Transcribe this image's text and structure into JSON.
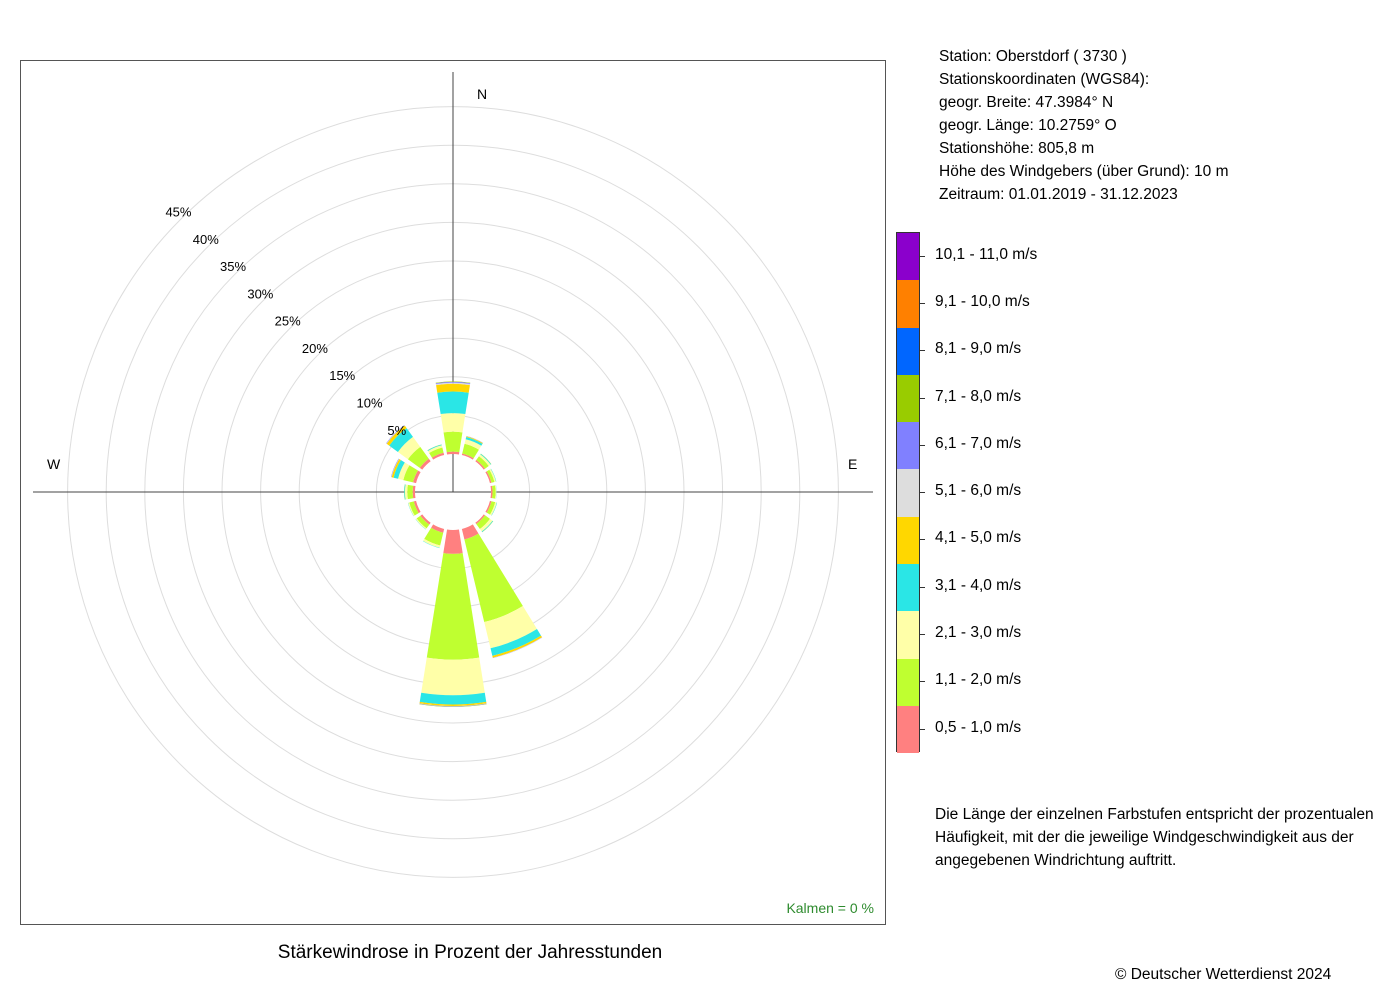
{
  "chart_data": {
    "type": "windrose",
    "title": "Stärkewindrose in Prozent der Jahresstunden",
    "directions": [
      "N",
      "NNE",
      "NE",
      "ENE",
      "E",
      "ESE",
      "SE",
      "SSE",
      "S",
      "SSW",
      "SW",
      "WSW",
      "W",
      "WNW",
      "NW",
      "NNW"
    ],
    "direction_labels": {
      "N": "N",
      "E": "E",
      "W": "W"
    },
    "radial_ticks": [
      {
        "value": 5,
        "label": "5%"
      },
      {
        "value": 10,
        "label": "10%"
      },
      {
        "value": 15,
        "label": "15%"
      },
      {
        "value": 20,
        "label": "20%"
      },
      {
        "value": 25,
        "label": "25%"
      },
      {
        "value": 30,
        "label": "30%"
      },
      {
        "value": 35,
        "label": "35%"
      },
      {
        "value": 40,
        "label": "40%"
      },
      {
        "value": 45,
        "label": "45%"
      }
    ],
    "speed_classes": [
      {
        "label": "0,5 - 1,0 m/s",
        "color": "#ff8080"
      },
      {
        "label": "1,1 - 2,0 m/s",
        "color": "#bfff30"
      },
      {
        "label": "2,1 - 3,0 m/s",
        "color": "#ffffa8"
      },
      {
        "label": "3,1 - 4,0 m/s",
        "color": "#2ae6e6"
      },
      {
        "label": "4,1 - 5,0 m/s",
        "color": "#ffd700"
      },
      {
        "label": "5,1 - 6,0 m/s",
        "color": "#dddddd"
      },
      {
        "label": "6,1 - 7,0 m/s",
        "color": "#8080ff"
      },
      {
        "label": "7,1 - 8,0 m/s",
        "color": "#99cc00"
      },
      {
        "label": "8,1 - 9,0 m/s",
        "color": "#0066ff"
      },
      {
        "label": "9,1 - 10,0 m/s",
        "color": "#ff8000"
      },
      {
        "label": "10,1 - 11,0 m/s",
        "color": "#8b00cc"
      }
    ],
    "series": [
      {
        "direction": "N",
        "values": [
          0.3,
          2.6,
          2.4,
          2.8,
          1.0,
          0.15,
          0.1,
          0.05,
          0,
          0,
          0
        ]
      },
      {
        "direction": "NNE",
        "values": [
          0.2,
          1.3,
          0.6,
          0.3,
          0.1,
          0.03,
          0.02,
          0,
          0,
          0,
          0
        ]
      },
      {
        "direction": "NE",
        "values": [
          0.2,
          0.6,
          0.3,
          0.1,
          0.03,
          0,
          0,
          0,
          0,
          0,
          0
        ]
      },
      {
        "direction": "ENE",
        "values": [
          0.2,
          0.4,
          0.2,
          0.05,
          0,
          0,
          0,
          0,
          0,
          0,
          0
        ]
      },
      {
        "direction": "E",
        "values": [
          0.2,
          0.4,
          0.1,
          0.02,
          0,
          0,
          0,
          0,
          0,
          0,
          0
        ]
      },
      {
        "direction": "ESE",
        "values": [
          0.2,
          0.5,
          0.2,
          0.05,
          0,
          0,
          0,
          0,
          0,
          0,
          0
        ]
      },
      {
        "direction": "SE",
        "values": [
          0.2,
          0.8,
          0.4,
          0.1,
          0.02,
          0,
          0,
          0,
          0,
          0,
          0
        ]
      },
      {
        "direction": "SSE",
        "values": [
          1.4,
          11.0,
          3.5,
          1.0,
          0.25,
          0.03,
          0.02,
          0,
          0,
          0,
          0
        ]
      },
      {
        "direction": "S",
        "values": [
          3.1,
          13.7,
          4.6,
          1.2,
          0.2,
          0.03,
          0.05,
          0.03,
          0,
          0,
          0
        ]
      },
      {
        "direction": "SSW",
        "values": [
          0.5,
          1.7,
          0.3,
          0.05,
          0,
          0,
          0,
          0,
          0,
          0,
          0
        ]
      },
      {
        "direction": "SW",
        "values": [
          0.3,
          0.6,
          0.15,
          0.03,
          0,
          0,
          0,
          0,
          0,
          0,
          0
        ]
      },
      {
        "direction": "WSW",
        "values": [
          0.3,
          0.6,
          0.15,
          0.03,
          0,
          0,
          0,
          0,
          0,
          0,
          0
        ]
      },
      {
        "direction": "W",
        "values": [
          0.3,
          0.7,
          0.3,
          0.1,
          0.02,
          0,
          0,
          0,
          0,
          0,
          0
        ]
      },
      {
        "direction": "WNW",
        "values": [
          0.4,
          1.3,
          0.7,
          0.6,
          0.25,
          0.05,
          0.05,
          0,
          0,
          0,
          0
        ]
      },
      {
        "direction": "NW",
        "values": [
          0.4,
          1.9,
          1.6,
          1.4,
          0.4,
          0.05,
          0.05,
          0,
          0,
          0,
          0
        ]
      },
      {
        "direction": "NNW",
        "values": [
          0.3,
          0.7,
          0.3,
          0.1,
          0.02,
          0,
          0,
          0,
          0,
          0,
          0
        ]
      }
    ],
    "calms_label": "Kalmen  =  0 %"
  },
  "station_info": [
    "Station:  Oberstdorf  ( 3730 )",
    "Stationskoordinaten (WGS84):",
    "geogr. Breite: 47.3984° N",
    "geogr. Länge: 10.2759° O",
    "Stationshöhe: 805,8 m",
    "Höhe des Windgebers (über Grund): 10 m",
    "Zeitraum: 01.01.2019 - 31.12.2023"
  ],
  "note": "Die Länge der einzelnen Farbstufen entspricht der prozentualen Häufigkeit, mit der die jeweilige Windgeschwindigkeit aus der angegebenen Windrichtung auftritt.",
  "copyright": "© Deutscher Wetterdienst  2024",
  "colors": {
    "grid": "#dddddd",
    "axis": "#444444",
    "calms_text": "#2e8b2e"
  }
}
